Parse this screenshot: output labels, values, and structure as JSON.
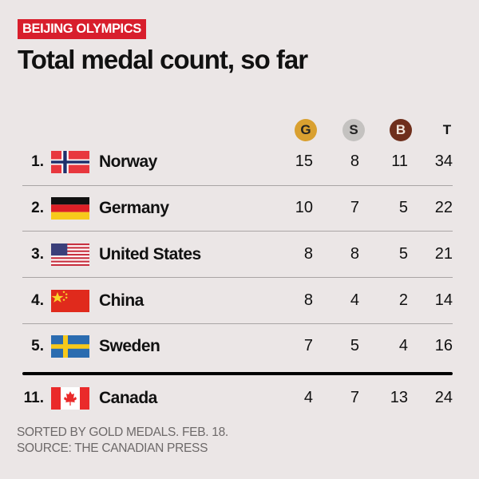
{
  "kicker": "BEIJING OLYMPICS",
  "title": "Total medal count, so far",
  "headers": {
    "gold": "G",
    "silver": "S",
    "bronze": "B",
    "total": "T"
  },
  "colors": {
    "kicker": "#d81e2c",
    "gold": "#d9a030",
    "silver": "#c4c2c0",
    "bronze": "#6f2f1c",
    "background": "#ebe6e6"
  },
  "rows": [
    {
      "rank": "1.",
      "country": "Norway",
      "flag": "norway-flag",
      "gold": "15",
      "silver": "8",
      "bronze": "11",
      "total": "34"
    },
    {
      "rank": "2.",
      "country": "Germany",
      "flag": "germany-flag",
      "gold": "10",
      "silver": "7",
      "bronze": "5",
      "total": "22"
    },
    {
      "rank": "3.",
      "country": "United States",
      "flag": "usa-flag",
      "gold": "8",
      "silver": "8",
      "bronze": "5",
      "total": "21"
    },
    {
      "rank": "4.",
      "country": "China",
      "flag": "china-flag",
      "gold": "8",
      "silver": "4",
      "bronze": "2",
      "total": "14"
    },
    {
      "rank": "5.",
      "country": "Sweden",
      "flag": "sweden-flag",
      "gold": "7",
      "silver": "5",
      "bronze": "4",
      "total": "16"
    },
    {
      "rank": "11.",
      "country": "Canada",
      "flag": "canada-flag",
      "gold": "4",
      "silver": "7",
      "bronze": "13",
      "total": "24"
    }
  ],
  "footer": {
    "line1": "SORTED BY GOLD MEDALS. FEB. 18.",
    "line2": "SOURCE: THE CANADIAN PRESS"
  }
}
